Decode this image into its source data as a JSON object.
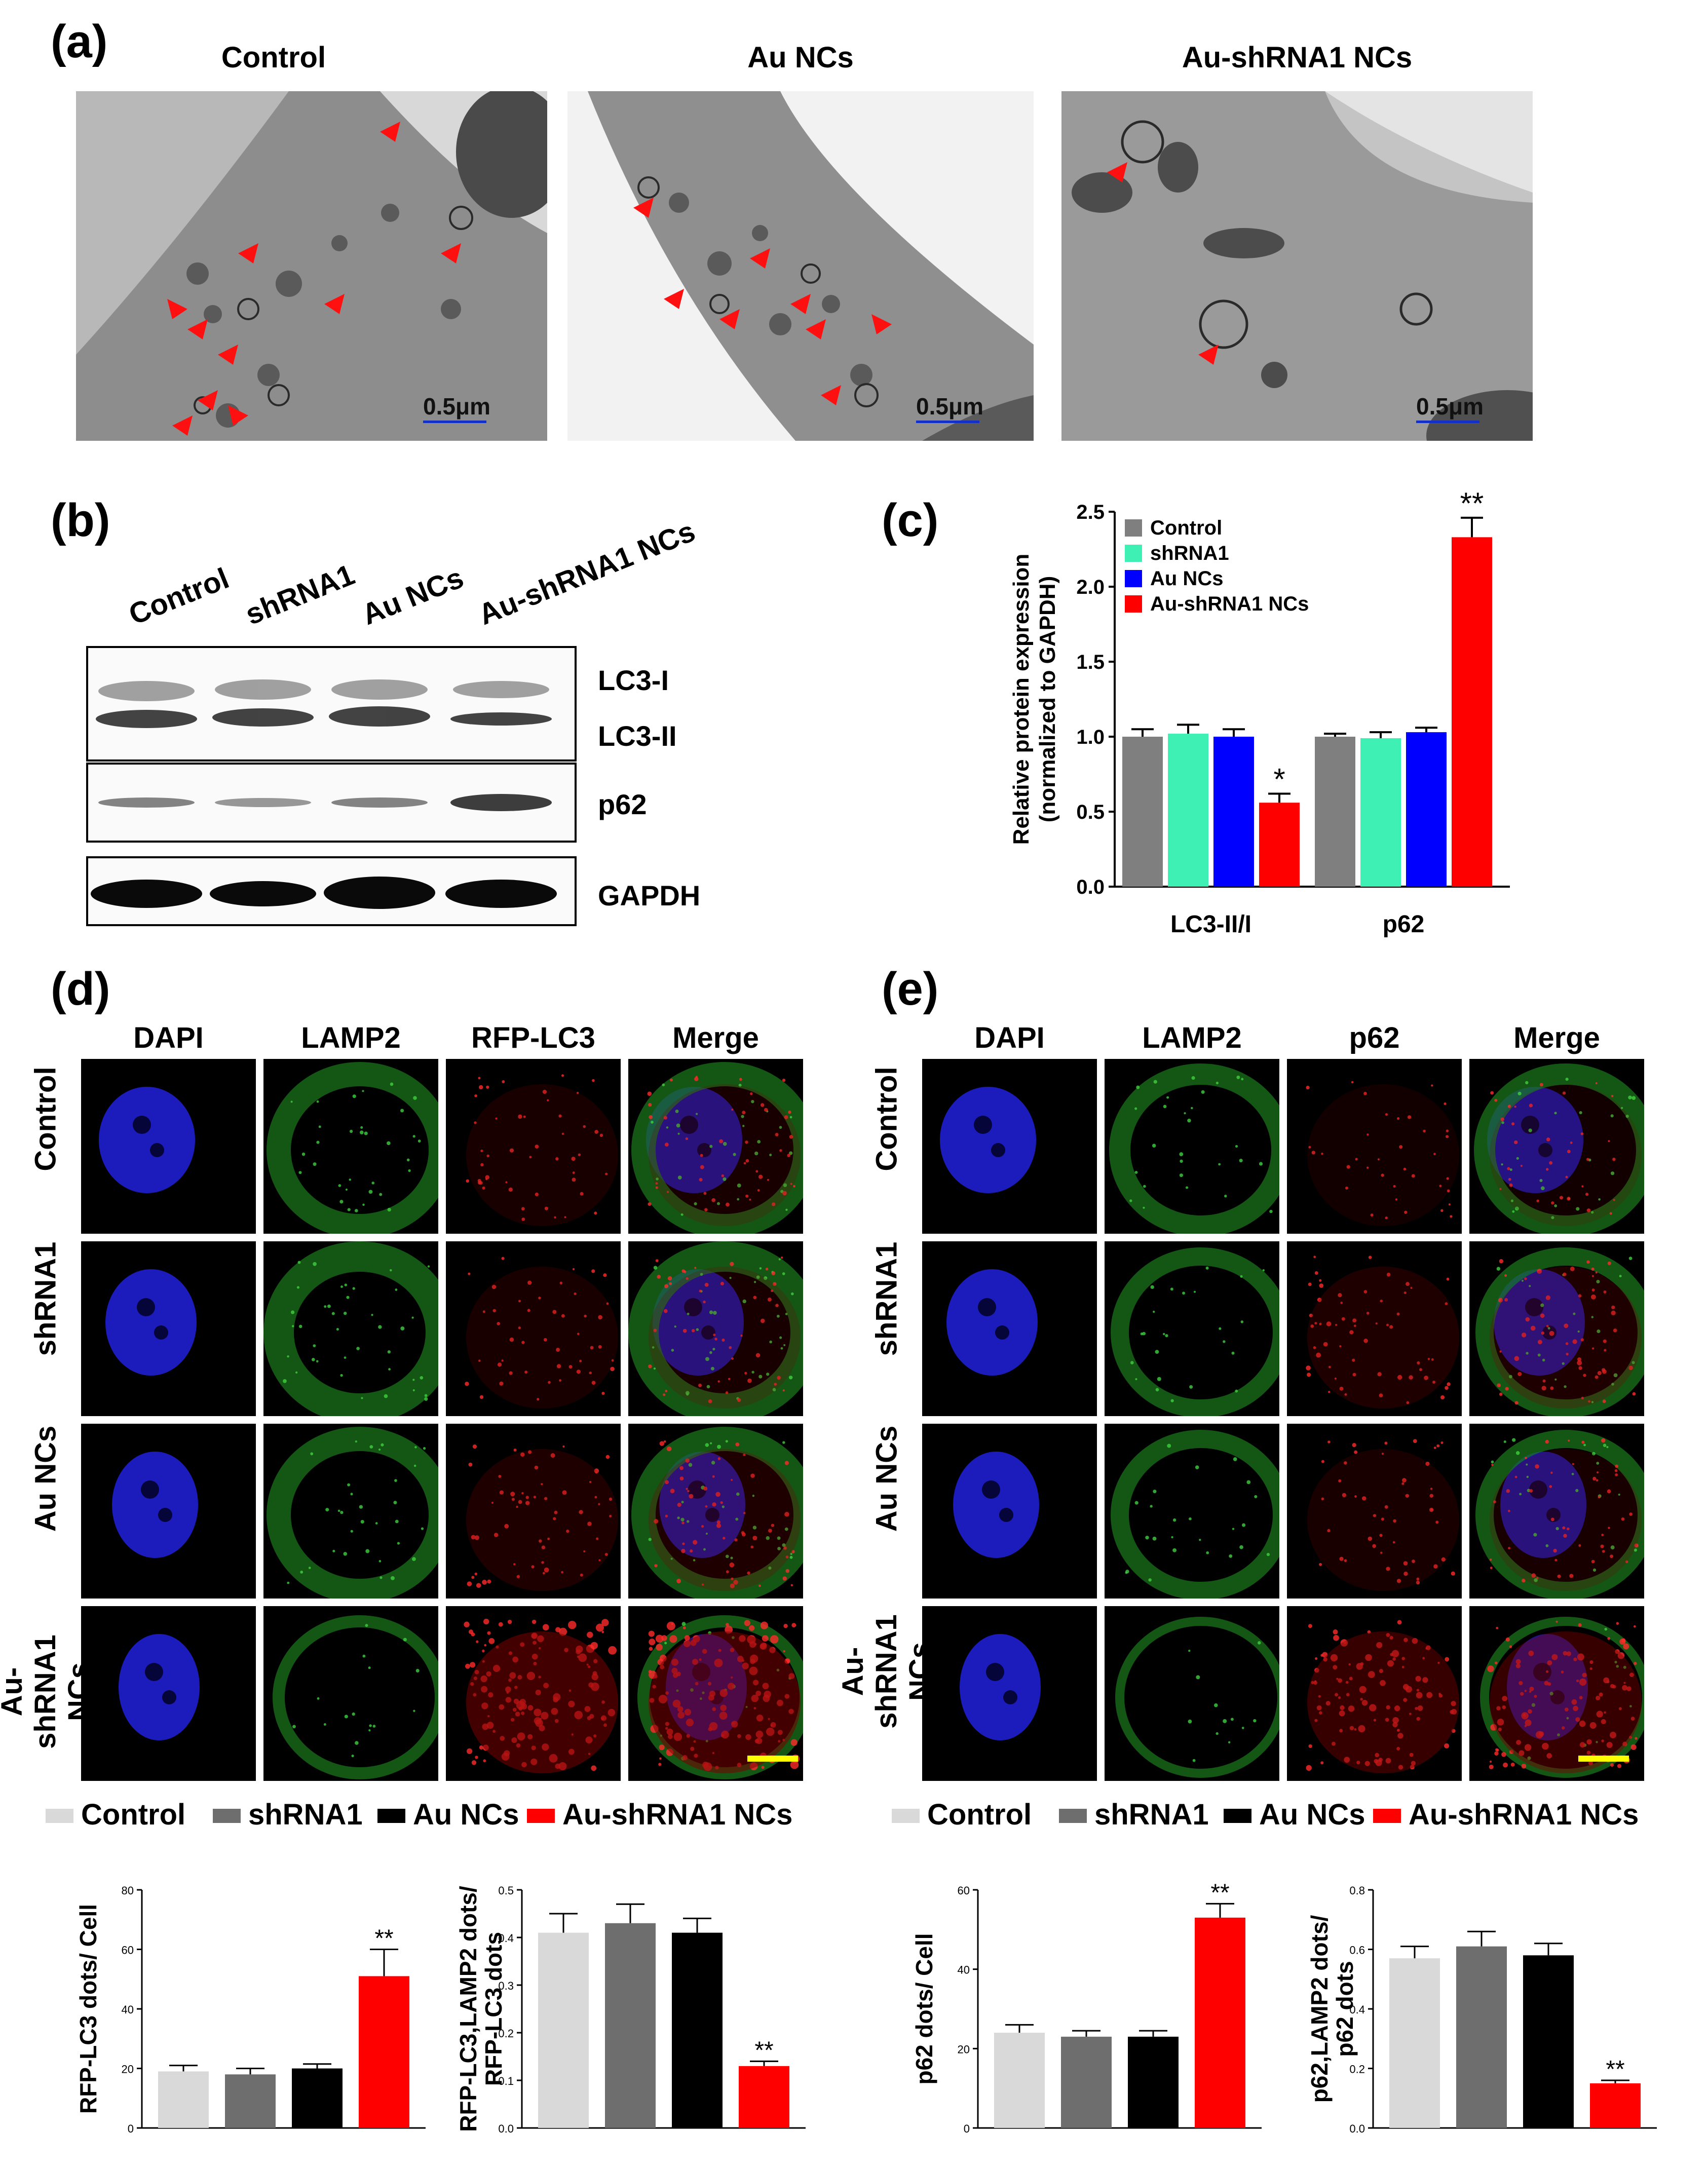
{
  "panel_a": {
    "letter": "(a)",
    "titles": [
      "Control",
      "Au NCs",
      "Au-shRNA1 NCs"
    ],
    "scale_label": "0.5μm"
  },
  "panel_b": {
    "letter": "(b)",
    "lanes": [
      "Control",
      "shRNA1",
      "Au NCs",
      "Au-shRNA1 NCs"
    ],
    "bands": [
      "LC3-I",
      "LC3-II",
      "p62",
      "GAPDH"
    ]
  },
  "panel_c": {
    "letter": "(c)"
  },
  "panel_d": {
    "letter": "(d)",
    "columns": [
      "DAPI",
      "LAMP2",
      "RFP-LC3",
      "Merge"
    ],
    "rows": [
      "Control",
      "shRNA1",
      "Au NCs",
      "Au-shRNA1 NCs"
    ]
  },
  "panel_e": {
    "letter": "(e)",
    "columns": [
      "DAPI",
      "LAMP2",
      "p62",
      "Merge"
    ],
    "rows": [
      "Control",
      "shRNA1",
      "Au NCs",
      "Au-shRNA1 NCs"
    ]
  },
  "legend_bottom": {
    "items": [
      "Control",
      "shRNA1",
      "Au NCs",
      "Au-shRNA1 NCs"
    ],
    "colors": [
      "#d9d9d9",
      "#6e6e6e",
      "#000000",
      "#ff0000"
    ]
  },
  "colors": {
    "control": "#7f7f7f",
    "shrna1": "#3ef0b4",
    "au_ncs": "#0000ff",
    "au_shrna1": "#ff0000",
    "scale_bar_yellow": "#ffff00",
    "scale_bar_blue": "#1230c8"
  },
  "chart_data": [
    {
      "id": "c",
      "type": "bar",
      "categories": [
        "LC3-II/I",
        "p62"
      ],
      "series": [
        {
          "name": "Control",
          "values": [
            1.0,
            1.0
          ],
          "errors": [
            0.05,
            0.02
          ],
          "color": "#7f7f7f"
        },
        {
          "name": "shRNA1",
          "values": [
            1.02,
            0.99
          ],
          "errors": [
            0.06,
            0.04
          ],
          "color": "#3ef0b4"
        },
        {
          "name": "Au NCs",
          "values": [
            1.0,
            1.03
          ],
          "errors": [
            0.05,
            0.03
          ],
          "color": "#0000ff"
        },
        {
          "name": "Au-shRNA1 NCs",
          "values": [
            0.56,
            2.33
          ],
          "errors": [
            0.06,
            0.13
          ],
          "color": "#ff0000"
        }
      ],
      "significance": [
        [
          "",
          "",
          "",
          "*"
        ],
        [
          "",
          "",
          "",
          "**"
        ]
      ],
      "ylabel": "Relative protein expression\n(normalized to GAPDH)",
      "ylim": [
        0,
        2.5
      ],
      "yticks": [
        "0.0",
        "0.5",
        "1.0",
        "1.5",
        "2.0",
        "2.5"
      ],
      "legend": "top-left"
    },
    {
      "id": "d1",
      "type": "bar",
      "categories": [
        "Control",
        "shRNA1",
        "Au NCs",
        "Au-shRNA1 NCs"
      ],
      "values": [
        19,
        18,
        20,
        51
      ],
      "errors": [
        2,
        2,
        1.5,
        9
      ],
      "significance": [
        "",
        "",
        "",
        "**"
      ],
      "colors": [
        "#d9d9d9",
        "#6e6e6e",
        "#000000",
        "#ff0000"
      ],
      "ylabel": "RFP-LC3 dots/ Cell",
      "ylim": [
        0,
        80
      ],
      "yticks": [
        "0",
        "20",
        "40",
        "60",
        "80"
      ]
    },
    {
      "id": "d2",
      "type": "bar",
      "categories": [
        "Control",
        "shRNA1",
        "Au NCs",
        "Au-shRNA1 NCs"
      ],
      "values": [
        0.41,
        0.43,
        0.41,
        0.13
      ],
      "errors": [
        0.04,
        0.04,
        0.03,
        0.01
      ],
      "significance": [
        "",
        "",
        "",
        "**"
      ],
      "colors": [
        "#d9d9d9",
        "#6e6e6e",
        "#000000",
        "#ff0000"
      ],
      "ylabel": "RFP-LC3,LAMP2 dots/\nRFP-LC3 dots",
      "ylim": [
        0,
        0.5
      ],
      "yticks": [
        "0.0",
        "0.1",
        "0.2",
        "0.3",
        "0.4",
        "0.5"
      ]
    },
    {
      "id": "e1",
      "type": "bar",
      "categories": [
        "Control",
        "shRNA1",
        "Au NCs",
        "Au-shRNA1 NCs"
      ],
      "values": [
        24,
        23,
        23,
        53
      ],
      "errors": [
        2,
        1.5,
        1.5,
        3.5
      ],
      "significance": [
        "",
        "",
        "",
        "**"
      ],
      "colors": [
        "#d9d9d9",
        "#6e6e6e",
        "#000000",
        "#ff0000"
      ],
      "ylabel": "p62  dots/ Cell",
      "ylim": [
        0,
        60
      ],
      "yticks": [
        "0",
        "20",
        "40",
        "60"
      ]
    },
    {
      "id": "e2",
      "type": "bar",
      "categories": [
        "Control",
        "shRNA1",
        "Au NCs",
        "Au-shRNA1 NCs"
      ],
      "values": [
        0.57,
        0.61,
        0.58,
        0.15
      ],
      "errors": [
        0.04,
        0.05,
        0.04,
        0.01
      ],
      "significance": [
        "",
        "",
        "",
        "**"
      ],
      "colors": [
        "#d9d9d9",
        "#6e6e6e",
        "#000000",
        "#ff0000"
      ],
      "ylabel": "p62,LAMP2 dots/\np62 dots",
      "ylim": [
        0,
        0.8
      ],
      "yticks": [
        "0.0",
        "0.2",
        "0.4",
        "0.6",
        "0.8"
      ]
    }
  ]
}
